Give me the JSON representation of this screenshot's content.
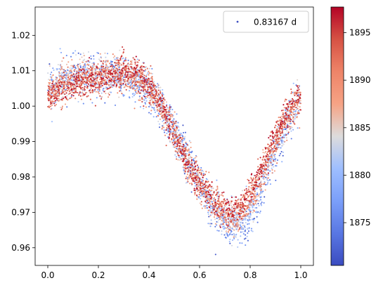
{
  "chart_data": {
    "type": "scatter",
    "xlim": [
      -0.05,
      1.05
    ],
    "ylim": [
      0.955,
      1.028
    ],
    "x_ticks": [
      0.0,
      0.2,
      0.4,
      0.6,
      0.8,
      1.0
    ],
    "x_tick_labels": [
      "0.0",
      "0.2",
      "0.4",
      "0.6",
      "0.8",
      "1.0"
    ],
    "y_ticks": [
      0.96,
      0.97,
      0.98,
      0.99,
      1.0,
      1.01,
      1.02
    ],
    "y_tick_labels": [
      "0.96",
      "0.97",
      "0.98",
      "0.99",
      "1.00",
      "1.01",
      "1.02"
    ],
    "grid": false,
    "legend": {
      "position": "top-right",
      "entries": [
        "0.83167 d"
      ]
    },
    "colorbar": {
      "colormap": "coolwarm",
      "range": [
        1870.5,
        1897.7
      ],
      "ticks": [
        1875,
        1880,
        1885,
        1890,
        1895
      ],
      "tick_labels": [
        "1875",
        "1880",
        "1885",
        "1890",
        "1895"
      ]
    },
    "series": [
      {
        "name": "0.83167 d",
        "color_value": "time",
        "color_low": "#3b4cc0",
        "color_high": "#b40426",
        "x": [
          0.0,
          0.05,
          0.1,
          0.15,
          0.2,
          0.25,
          0.3,
          0.35,
          0.4,
          0.45,
          0.5,
          0.55,
          0.6,
          0.65,
          0.7,
          0.72,
          0.75,
          0.8,
          0.85,
          0.9,
          0.95,
          1.0
        ],
        "y_early": [
          1.005,
          1.008,
          1.009,
          1.01,
          1.009,
          1.008,
          1.008,
          1.007,
          1.005,
          1.0,
          0.993,
          0.986,
          0.978,
          0.972,
          0.966,
          0.965,
          0.965,
          0.967,
          0.975,
          0.986,
          0.996,
          1.003
        ],
        "y_late": [
          1.002,
          1.005,
          1.006,
          1.007,
          1.008,
          1.009,
          1.01,
          1.009,
          1.006,
          1.0,
          0.992,
          0.984,
          0.978,
          0.974,
          0.971,
          0.97,
          0.971,
          0.976,
          0.984,
          0.992,
          0.998,
          1.003
        ]
      }
    ]
  }
}
